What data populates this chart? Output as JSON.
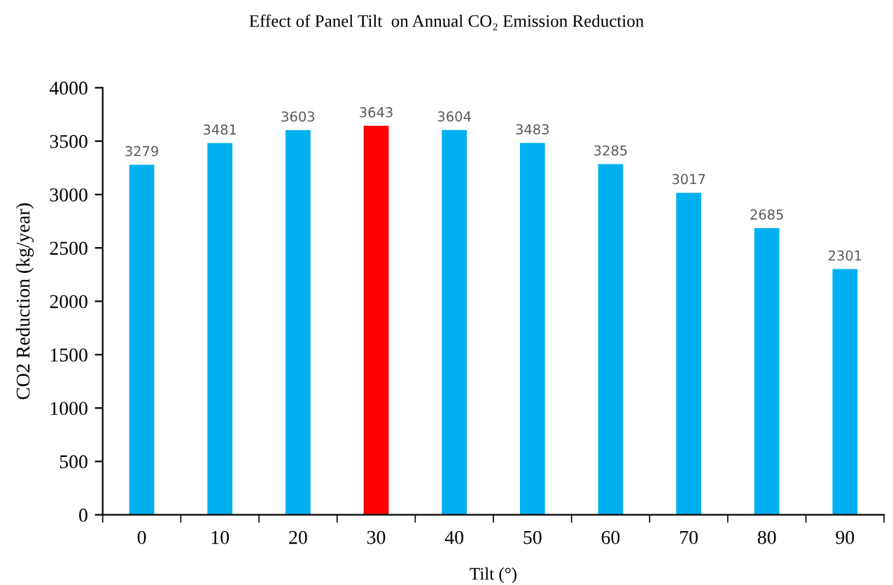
{
  "chart_data": {
    "type": "bar",
    "title": "Effect of Panel Tilt  on Annual CO₂ Emission Reduction",
    "xlabel": "Tilt (°)",
    "ylabel": "CO2 Reduction (kg/year)",
    "categories": [
      "0",
      "10",
      "20",
      "30",
      "40",
      "50",
      "60",
      "70",
      "80",
      "90"
    ],
    "values": [
      3279,
      3481,
      3603,
      3643,
      3604,
      3483,
      3285,
      3017,
      2685,
      2301
    ],
    "colors": [
      "#00b0f0",
      "#00b0f0",
      "#00b0f0",
      "#ff0000",
      "#00b0f0",
      "#00b0f0",
      "#00b0f0",
      "#00b0f0",
      "#00b0f0",
      "#00b0f0"
    ],
    "ylim": [
      0,
      4000
    ],
    "yticks": [
      0,
      500,
      1000,
      1500,
      2000,
      2500,
      3000,
      3500,
      4000
    ],
    "grid": false,
    "data_labels": true
  }
}
